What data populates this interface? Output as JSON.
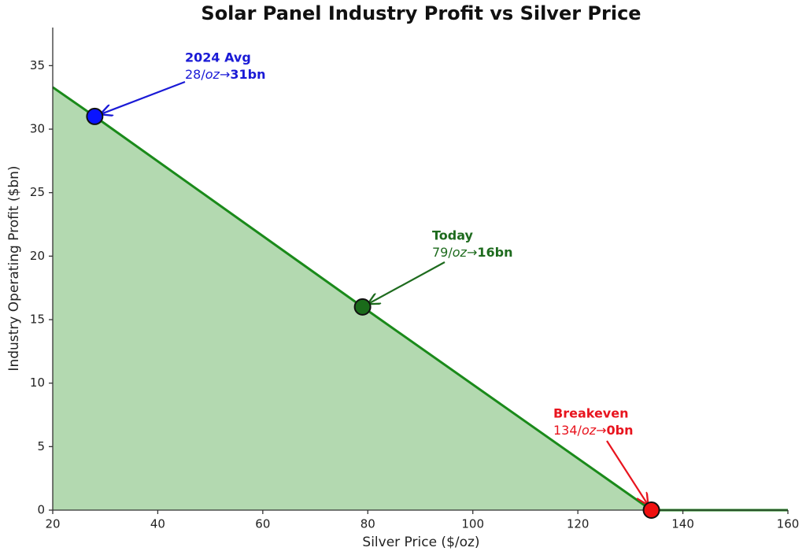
{
  "chart_data": {
    "type": "area-line",
    "title": "Solar Panel Industry Profit vs Silver Price",
    "x_label": "Silver Price ($/oz)",
    "y_label": "Industry Operating Profit ($bn)",
    "x": [
      20,
      28,
      79,
      134,
      160
    ],
    "values": [
      33.3,
      31,
      16,
      0,
      0
    ],
    "color": "#1a8a1a",
    "fill_color": "#b3d9b0",
    "xlim": [
      20,
      160
    ],
    "xticks": [
      20,
      40,
      60,
      80,
      100,
      120,
      140,
      160
    ],
    "ylim": [
      0,
      38
    ],
    "yticks": [
      0,
      5,
      10,
      15,
      20,
      25,
      30,
      35
    ],
    "grid": false,
    "annotations": [
      {
        "x": 28,
        "y": 31,
        "title": "2024 Avg",
        "text": [
          "28/",
          "oz",
          "→",
          "31bn"
        ],
        "color": "#1a1ad6",
        "marker_color": "#0a14ff"
      },
      {
        "x": 79,
        "y": 16,
        "title": "Today",
        "text": [
          "79/",
          "oz",
          "→",
          "16bn"
        ],
        "color": "#1e6b1e",
        "marker_color": "#1a6b1a"
      },
      {
        "x": 134,
        "y": 0,
        "title": "Breakeven",
        "text": [
          "134/",
          "oz",
          "→",
          "0bn"
        ],
        "color": "#e8141e",
        "marker_color": "#f01010"
      }
    ]
  }
}
